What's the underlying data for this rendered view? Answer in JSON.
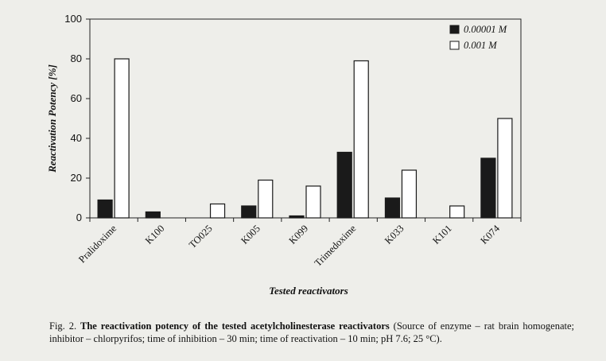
{
  "chart_data": {
    "type": "bar",
    "xlabel": "Tested reactivators",
    "ylabel": "Reactivation Potency [%]",
    "ylim": [
      0,
      100
    ],
    "yticks": [
      0,
      20,
      40,
      60,
      80,
      100
    ],
    "grid": false,
    "legend_position": "top-right",
    "categories": [
      "Pralidoxime",
      "K100",
      "TO025",
      "K005",
      "K099",
      "Trimedoxime",
      "K033",
      "K101",
      "K074"
    ],
    "series": [
      {
        "name": "0.00001 M",
        "color": "#1a1a1a",
        "values": [
          9,
          3,
          0,
          6,
          1,
          33,
          10,
          0,
          30
        ]
      },
      {
        "name": "0.001 M",
        "color": "#ffffff",
        "values": [
          80,
          0,
          7,
          19,
          16,
          79,
          24,
          6,
          50
        ]
      }
    ]
  },
  "caption": {
    "prefix": "Fig. 2. ",
    "title": "The reactivation potency of the tested acetylcholinesterase reactivators",
    "rest": " (Source of enzyme – rat brain homogenate; inhibitor – chlorpyrifos; time of inhibition – 30 min; time of reactivation – 10 min; pH 7.6; 25 °C)."
  }
}
